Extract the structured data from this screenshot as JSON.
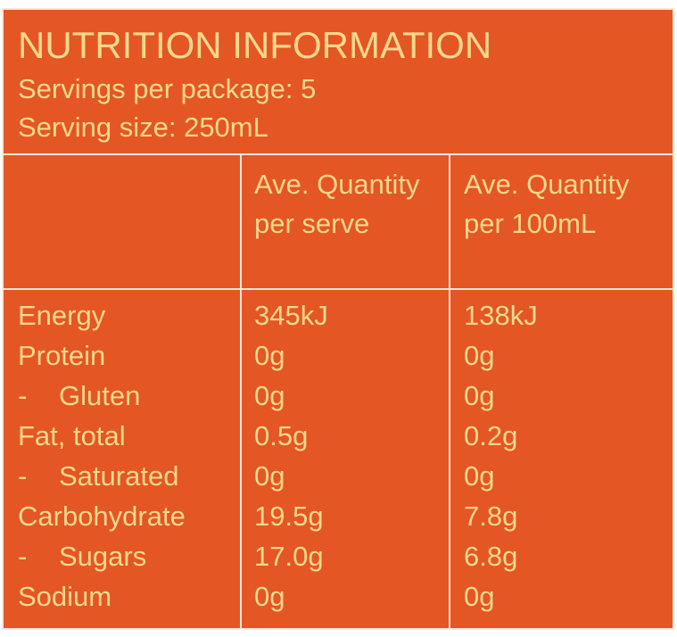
{
  "header": {
    "title": "NUTRITION INFORMATION",
    "servings": "Servings per package: 5",
    "serving_size": "Serving size: 250mL"
  },
  "table": {
    "columns": [
      "Ave. Quantity per serve",
      "Ave. Quantity per 100mL"
    ],
    "rows": [
      {
        "name": "Energy",
        "serve": "345kJ",
        "per100": "138kJ"
      },
      {
        "name": "Protein",
        "serve": "0g",
        "per100": "0g"
      },
      {
        "prefix": "-",
        "name": "Gluten",
        "serve": "0g",
        "per100": "0g"
      },
      {
        "name": "Fat, total",
        "serve": "0.5g",
        "per100": "0.2g"
      },
      {
        "prefix": "-",
        "name": "Saturated",
        "serve": "0g",
        "per100": "0g"
      },
      {
        "name": "Carbohydrate",
        "serve": "19.5g",
        "per100": "7.8g"
      },
      {
        "prefix": "-",
        "name": "Sugars",
        "serve": "17.0g",
        "per100": "6.8g"
      },
      {
        "name": "Sodium",
        "serve": "0g",
        "per100": "0g"
      }
    ]
  }
}
